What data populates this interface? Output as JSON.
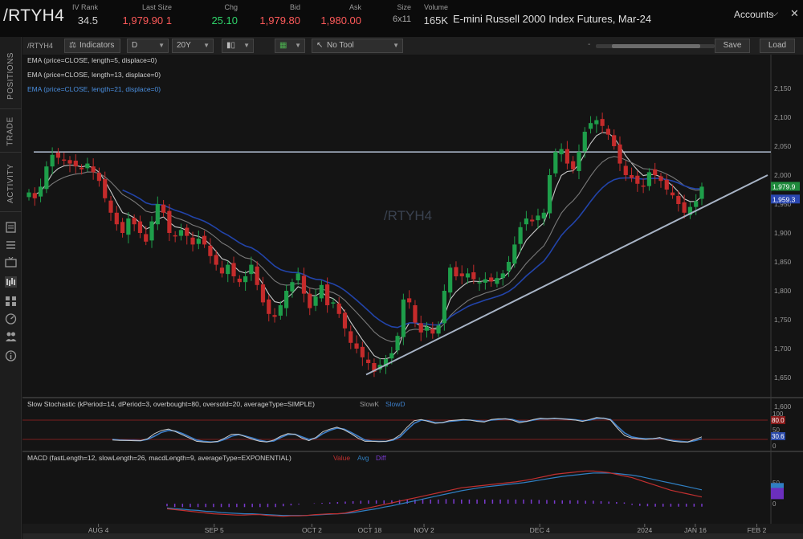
{
  "quote": {
    "symbol": "/RTYH4",
    "iv_rank_label": "IV Rank",
    "iv_rank": "34.5",
    "last_label": "Last Size",
    "last": "1,979.90",
    "last_size": "1",
    "chg_label": "Chg",
    "chg": "25.10",
    "bid_label": "Bid",
    "bid": "1,979.80",
    "ask_label": "Ask",
    "ask": "1,980.00",
    "size_label": "Size",
    "size": "6x11",
    "volume_label": "Volume",
    "volume": "165K",
    "description": "E-mini Russell 2000 Index Futures, Mar-24",
    "accounts_label": "Accounts"
  },
  "colors": {
    "up": "#1e9e4a",
    "down": "#c42b2b",
    "ema5": "#c8c8c8",
    "ema13": "#7a7a7a",
    "ema21": "#2244aa",
    "trendline": "#a8b4c6",
    "stoch_k": "#c8c8c8",
    "stoch_d": "#3c7ec8",
    "macd_line": "#c23030",
    "macd_avg": "#2f7fc2",
    "macd_diff": "#7a3ad0",
    "bg": "#141414"
  },
  "sidebar": {
    "tabs": [
      "POSITIONS",
      "TRADE",
      "ACTIVITY"
    ]
  },
  "toolbar": {
    "symbol": "/RTYH4",
    "indicators_label": "Indicators",
    "aggregation": "D",
    "timeframe": "20Y",
    "drawing_tool": "No Tool",
    "save_label": "Save",
    "load_label": "Load"
  },
  "price_studies": [
    "EMA (price=CLOSE, length=5, displace=0)",
    "EMA (price=CLOSE, length=13, displace=0)",
    "EMA (price=CLOSE, length=21, displace=0)"
  ],
  "watermark": "/RTYH4",
  "stoch_title": "Slow Stochastic (kPeriod=14, dPeriod=3, overbought=80, oversold=20, averageType=SIMPLE)",
  "stoch_legend": {
    "k": "SlowK",
    "d": "SlowD"
  },
  "macd_title": "MACD (fastLength=12, slowLength=26, macdLength=9, averageType=EXPONENTIAL)",
  "macd_legend": {
    "value": "Value",
    "avg": "Avg",
    "diff": "Diff"
  },
  "chart_data": {
    "type": "candlestick",
    "title": "/RTYH4",
    "price_axis": {
      "ylim": [
        1600,
        2150
      ],
      "ticks": [
        "1,600",
        "1,650",
        "1,700",
        "1,750",
        "1,800",
        "1,850",
        "1,900",
        "1,950",
        "2,000",
        "2,050",
        "2,100",
        "2,150"
      ],
      "last_price_badge": "1,979.9",
      "ema_badge": "1,959.3"
    },
    "x_labels": [
      {
        "date": "2023-08-04",
        "label": "AUG 4"
      },
      {
        "date": "2023-09-05",
        "label": "SEP 5"
      },
      {
        "date": "2023-10-02",
        "label": "OCT 2"
      },
      {
        "date": "2023-10-18",
        "label": "OCT 18"
      },
      {
        "date": "2023-11-02",
        "label": "NOV 2"
      },
      {
        "date": "2023-12-04",
        "label": "DEC 4"
      },
      {
        "date": "2024-01-02",
        "label": "2024"
      },
      {
        "date": "2024-01-16",
        "label": "JAN 16"
      },
      {
        "date": "2024-02-02",
        "label": "FEB 2"
      }
    ],
    "resistance_level": 2040,
    "trendline": [
      {
        "date": "2023-10-27",
        "price": 1655
      },
      {
        "date": "2024-01-29",
        "price": 2000
      }
    ],
    "closes": [
      1970,
      1960,
      1980,
      2015,
      2035,
      2030,
      2025,
      2020,
      2015,
      2010,
      2020,
      2005,
      1990,
      1960,
      1935,
      1915,
      1900,
      1925,
      1915,
      1900,
      1885,
      1920,
      1950,
      1935,
      1900,
      1895,
      1905,
      1895,
      1880,
      1890,
      1880,
      1860,
      1845,
      1830,
      1845,
      1825,
      1815,
      1825,
      1845,
      1810,
      1780,
      1760,
      1755,
      1775,
      1800,
      1815,
      1830,
      1795,
      1770,
      1790,
      1810,
      1775,
      1780,
      1760,
      1735,
      1710,
      1700,
      1685,
      1675,
      1660,
      1672,
      1682,
      1692,
      1722,
      1785,
      1780,
      1745,
      1728,
      1738,
      1726,
      1740,
      1800,
      1840,
      1825,
      1825,
      1830,
      1820,
      1815,
      1820,
      1816,
      1822,
      1830,
      1850,
      1880,
      1910,
      1925,
      1920,
      1930,
      1935,
      2000,
      2040,
      2045,
      2020,
      2010,
      2040,
      2075,
      2090,
      2095,
      2085,
      2070,
      2050,
      2020,
      2000,
      1995,
      1985,
      1980,
      2005,
      2000,
      1990,
      1975,
      1965,
      1950,
      1935,
      1945,
      1955,
      1980
    ],
    "ema_badges": [
      "1,979.9",
      "1,959.3"
    ],
    "stochastic": {
      "ylim": [
        0,
        100
      ],
      "ticks": [
        "0",
        "50",
        "100"
      ],
      "overbought": 80,
      "oversold": 20,
      "badges": [
        "80.0",
        "30.6"
      ],
      "slowK": [
        18,
        17,
        17,
        16,
        16,
        22,
        38,
        48,
        52,
        44,
        34,
        24,
        14,
        12,
        11,
        14,
        24,
        36,
        36,
        28,
        20,
        14,
        12,
        18,
        30,
        38,
        36,
        24,
        16,
        26,
        44,
        52,
        58,
        50,
        38,
        24,
        14,
        14,
        13,
        14,
        20,
        34,
        58,
        78,
        82,
        76,
        70,
        72,
        78,
        80,
        82,
        80,
        76,
        74,
        82,
        84,
        84,
        80,
        72,
        76,
        82,
        86,
        84,
        86,
        84,
        82,
        80,
        76,
        82,
        88,
        86,
        80,
        54,
        32,
        24,
        22,
        20,
        22,
        26,
        18,
        14,
        12,
        12,
        20,
        28
      ],
      "slowD": [
        20,
        18,
        17,
        17,
        16,
        20,
        30,
        42,
        48,
        46,
        38,
        28,
        18,
        14,
        12,
        13,
        20,
        30,
        35,
        30,
        24,
        17,
        13,
        15,
        26,
        35,
        36,
        28,
        20,
        24,
        38,
        48,
        55,
        52,
        42,
        30,
        18,
        15,
        14,
        14,
        18,
        28,
        50,
        70,
        80,
        78,
        72,
        72,
        76,
        78,
        80,
        80,
        78,
        76,
        80,
        82,
        84,
        82,
        76,
        76,
        80,
        84,
        84,
        85,
        84,
        83,
        81,
        78,
        80,
        85,
        86,
        82,
        60,
        40,
        28,
        24,
        22,
        22,
        24,
        20,
        16,
        14,
        12,
        16,
        22
      ]
    },
    "macd": {
      "ticks": [
        "0",
        "50"
      ],
      "zero": 0,
      "value": [
        -12,
        -14,
        -16,
        -18,
        -20,
        -22,
        -24,
        -25,
        -26,
        -27,
        -27,
        -26,
        -26,
        -28,
        -29,
        -30,
        -29,
        -29,
        -28,
        -26,
        -25,
        -24,
        -24,
        -22,
        -18,
        -14,
        -10,
        -6,
        -2,
        2,
        6,
        10,
        14,
        18,
        22,
        26,
        30,
        34,
        38,
        40,
        42,
        44,
        46,
        48,
        50,
        52,
        55,
        58,
        62,
        66,
        70,
        72,
        74,
        76,
        78,
        78,
        76,
        74,
        70,
        66,
        62,
        56,
        50,
        44,
        38,
        32,
        28,
        24,
        20,
        16
      ],
      "avg": [
        -10,
        -12,
        -13,
        -15,
        -16,
        -18,
        -19,
        -21,
        -22,
        -23,
        -24,
        -24,
        -25,
        -26,
        -27,
        -28,
        -28,
        -28,
        -28,
        -27,
        -26,
        -25,
        -24,
        -23,
        -21,
        -18,
        -15,
        -12,
        -8,
        -5,
        -1,
        3,
        7,
        11,
        15,
        19,
        23,
        27,
        31,
        34,
        37,
        40,
        42,
        44,
        46,
        48,
        50,
        53,
        56,
        59,
        62,
        65,
        67,
        69,
        71,
        73,
        73,
        73,
        72,
        70,
        68,
        65,
        61,
        57,
        53,
        49,
        45,
        41,
        37,
        33
      ],
      "diff": [
        -6,
        -8,
        -8,
        -8,
        -8,
        -8,
        -8,
        -8,
        -8,
        -8,
        -8,
        -8,
        -8,
        -8,
        -8,
        -6,
        -4,
        -2,
        0,
        1,
        2,
        3,
        4,
        5,
        6,
        7,
        8,
        8,
        8,
        8,
        9,
        10,
        10,
        10,
        10,
        10,
        11,
        11,
        10,
        10,
        10,
        10,
        10,
        10,
        10,
        10,
        10,
        10,
        9,
        9,
        8,
        8,
        8,
        8,
        7,
        7,
        6,
        5,
        4,
        3,
        -3,
        -5,
        -6,
        -7,
        -7,
        -7,
        -7,
        -7,
        -7,
        -7
      ]
    }
  }
}
